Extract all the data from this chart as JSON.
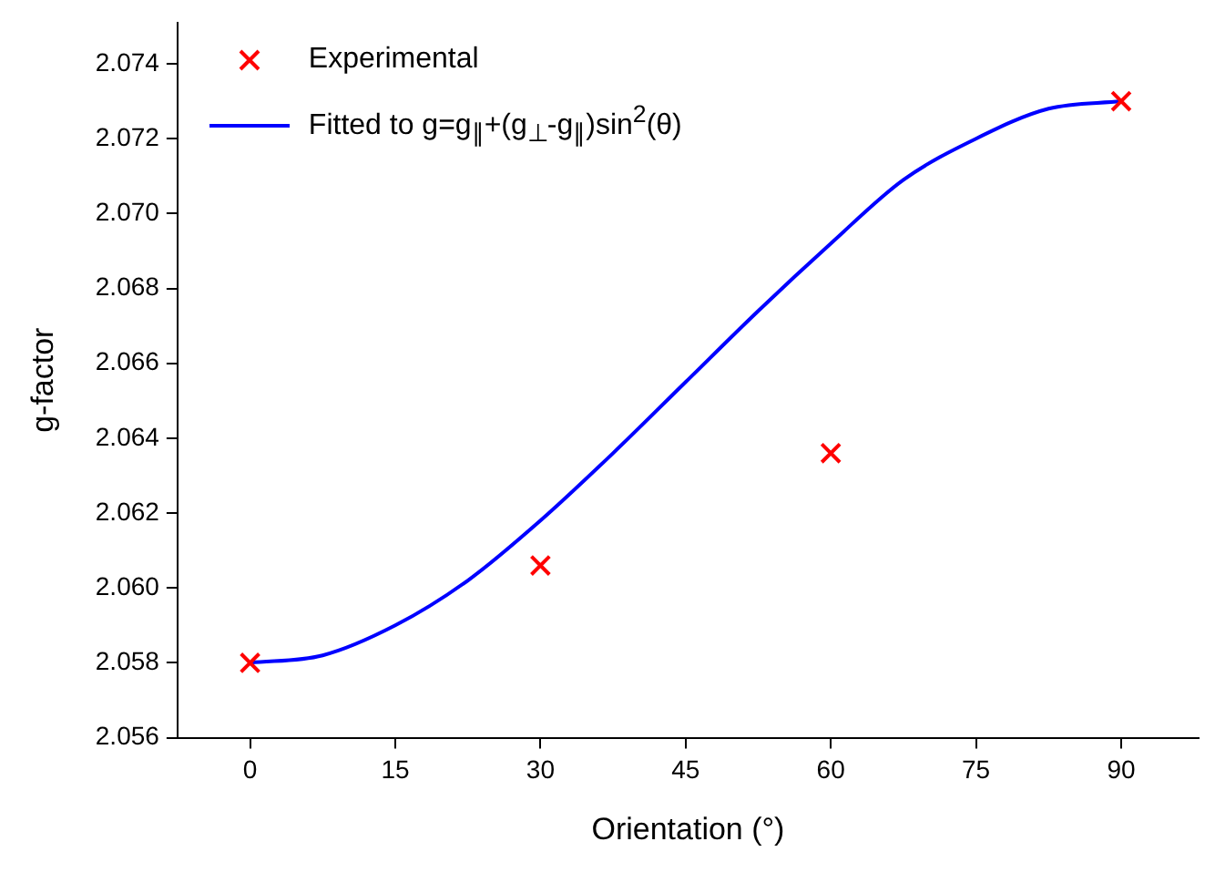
{
  "chart_data": {
    "type": "scatter",
    "xlabel": "Orientation (°)",
    "ylabel": "g-factor",
    "xlim": [
      -7.5,
      98
    ],
    "xticks": [
      0,
      15,
      30,
      45,
      60,
      75,
      90
    ],
    "ylim": [
      2.056,
      2.0751
    ],
    "yticks": [
      2.056,
      2.058,
      {
        "value": 2.06,
        "label": "2.060"
      },
      2.062,
      2.064,
      2.066,
      2.068,
      {
        "value": 2.07,
        "label": "2.070"
      },
      2.072,
      2.074
    ],
    "grid": false,
    "legend": "top left",
    "series": [
      {
        "name": "Experimental",
        "type": "scatter",
        "marker": "cross",
        "color": "#ff0000",
        "x": [
          0,
          30,
          60,
          90
        ],
        "values": [
          2.058,
          2.0606,
          2.0636,
          2.073
        ]
      },
      {
        "name": "Fitted to g=g$_{∥}$+(g$_{⊥}$-g$_{∥}$)sin$^{2}$(θ)",
        "type": "line",
        "marker": "none",
        "line_style": "solid",
        "color": "#0000ff",
        "x": [
          0,
          7.5,
          15,
          22.5,
          30,
          37.5,
          45,
          52.5,
          60,
          67.5,
          75,
          82.5,
          90
        ],
        "values": [
          2.058,
          2.0582,
          2.059,
          2.0602,
          2.0618,
          2.0636,
          2.0655,
          2.0674,
          2.0692,
          2.0709,
          2.072,
          2.0728,
          2.073
        ]
      }
    ]
  }
}
